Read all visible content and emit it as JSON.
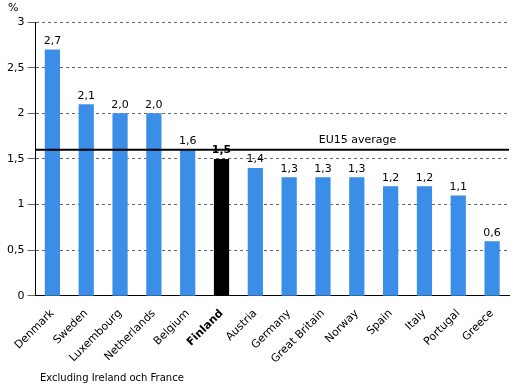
{
  "chart_data": {
    "type": "bar",
    "ylabel": "%",
    "categories": [
      "Denmark",
      "Sweden",
      "Luxembourg",
      "Netherlands",
      "Belgium",
      "Finland",
      "Austria",
      "Germany",
      "Great Britain",
      "Norway",
      "Spain",
      "Italy",
      "Portugal",
      "Greece"
    ],
    "values": [
      2.7,
      2.1,
      2.0,
      2.0,
      1.6,
      1.5,
      1.4,
      1.3,
      1.3,
      1.3,
      1.2,
      1.2,
      1.1,
      0.6
    ],
    "value_labels": [
      "2,7",
      "2,1",
      "2,0",
      "2,0",
      "1,6",
      "1,5",
      "1,4",
      "1,3",
      "1,3",
      "1,3",
      "1,2",
      "1,2",
      "1,1",
      "0,6"
    ],
    "colors": [
      "#3b8ee8",
      "#3b8ee8",
      "#3b8ee8",
      "#3b8ee8",
      "#3b8ee8",
      "#000000",
      "#3b8ee8",
      "#3b8ee8",
      "#3b8ee8",
      "#3b8ee8",
      "#3b8ee8",
      "#3b8ee8",
      "#3b8ee8",
      "#3b8ee8"
    ],
    "data_labels": true,
    "ylim": [
      0,
      3
    ],
    "yticks": [
      0,
      {
        "value": 0.5,
        "label": "0,5"
      },
      1,
      {
        "value": 1.5,
        "label": "1,5"
      },
      2,
      {
        "value": 2.5,
        "label": "2,5"
      },
      3
    ],
    "grid": true,
    "annotations": [
      {
        "text": "EU15 average",
        "y": 1.6
      }
    ],
    "footnote": "Excluding Ireland och France"
  }
}
